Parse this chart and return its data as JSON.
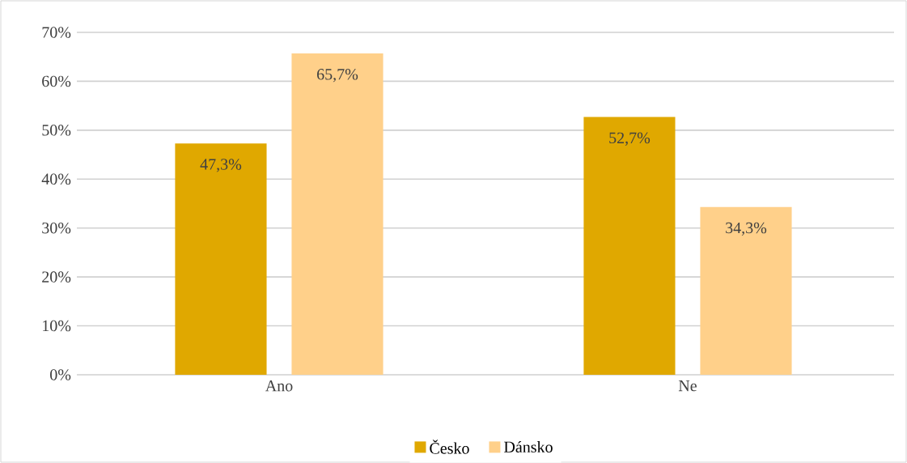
{
  "chart_data": {
    "type": "bar",
    "categories": [
      "Ano",
      "Ne"
    ],
    "series": [
      {
        "name": "Česko",
        "color": "#e0a800",
        "values": [
          47.3,
          52.7
        ],
        "value_labels": [
          "47,3%",
          "52,7%"
        ]
      },
      {
        "name": "Dánsko",
        "color": "#ffd08a",
        "values": [
          65.7,
          34.3
        ],
        "value_labels": [
          "65,7%",
          "34,3%"
        ]
      }
    ],
    "ylim": [
      0,
      70
    ],
    "yticks": [
      {
        "value": 0,
        "label": "0%"
      },
      {
        "value": 10,
        "label": "10%"
      },
      {
        "value": 20,
        "label": "20%"
      },
      {
        "value": 30,
        "label": "30%"
      },
      {
        "value": 40,
        "label": "40%"
      },
      {
        "value": 50,
        "label": "50%"
      },
      {
        "value": 60,
        "label": "60%"
      },
      {
        "value": 70,
        "label": "70%"
      }
    ],
    "grid": "y",
    "legend": "bottom"
  }
}
